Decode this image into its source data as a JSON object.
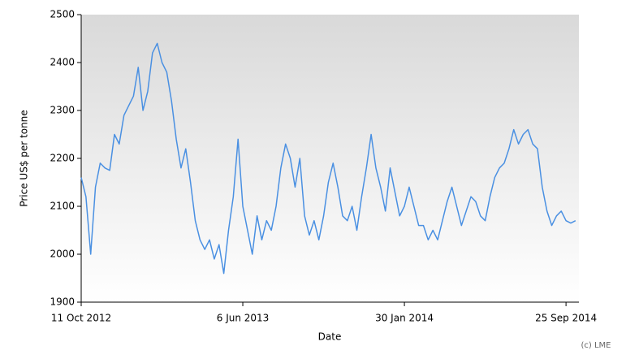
{
  "chart_data": {
    "type": "line",
    "y_label": "Price US$ per tonne",
    "x_label": "Date",
    "credit": "(c) LME",
    "color": "#4a90e2",
    "x": [
      "2012-10-11",
      "2012-10-18",
      "2012-10-25",
      "2012-11-01",
      "2012-11-08",
      "2012-11-15",
      "2012-11-22",
      "2012-11-29",
      "2012-12-06",
      "2012-12-13",
      "2012-12-20",
      "2012-12-27",
      "2013-01-03",
      "2013-01-10",
      "2013-01-17",
      "2013-01-24",
      "2013-01-31",
      "2013-02-07",
      "2013-02-14",
      "2013-02-21",
      "2013-02-28",
      "2013-03-07",
      "2013-03-14",
      "2013-03-21",
      "2013-03-28",
      "2013-04-04",
      "2013-04-11",
      "2013-04-18",
      "2013-04-25",
      "2013-05-02",
      "2013-05-09",
      "2013-05-16",
      "2013-05-23",
      "2013-05-30",
      "2013-06-06",
      "2013-06-13",
      "2013-06-20",
      "2013-06-27",
      "2013-07-04",
      "2013-07-11",
      "2013-07-18",
      "2013-07-25",
      "2013-08-01",
      "2013-08-08",
      "2013-08-15",
      "2013-08-22",
      "2013-08-29",
      "2013-09-05",
      "2013-09-12",
      "2013-09-19",
      "2013-09-26",
      "2013-10-03",
      "2013-10-10",
      "2013-10-17",
      "2013-10-24",
      "2013-10-31",
      "2013-11-07",
      "2013-11-14",
      "2013-11-21",
      "2013-11-28",
      "2013-12-05",
      "2013-12-12",
      "2013-12-19",
      "2013-12-26",
      "2014-01-02",
      "2014-01-09",
      "2014-01-16",
      "2014-01-23",
      "2014-01-30",
      "2014-02-06",
      "2014-02-13",
      "2014-02-20",
      "2014-02-27",
      "2014-03-06",
      "2014-03-13",
      "2014-03-20",
      "2014-03-27",
      "2014-04-03",
      "2014-04-10",
      "2014-04-17",
      "2014-04-24",
      "2014-05-01",
      "2014-05-08",
      "2014-05-15",
      "2014-05-22",
      "2014-05-29",
      "2014-06-05",
      "2014-06-12",
      "2014-06-19",
      "2014-06-26",
      "2014-07-03",
      "2014-07-10",
      "2014-07-17",
      "2014-07-24",
      "2014-07-31",
      "2014-08-07",
      "2014-08-14",
      "2014-08-21",
      "2014-08-28",
      "2014-09-04",
      "2014-09-11",
      "2014-09-18",
      "2014-09-25",
      "2014-10-02",
      "2014-10-09"
    ],
    "values": [
      2160,
      2120,
      2000,
      2140,
      2190,
      2180,
      2175,
      2250,
      2230,
      2290,
      2310,
      2330,
      2390,
      2300,
      2340,
      2420,
      2440,
      2400,
      2380,
      2320,
      2240,
      2180,
      2220,
      2150,
      2070,
      2030,
      2010,
      2030,
      1990,
      2020,
      1960,
      2050,
      2120,
      2240,
      2100,
      2050,
      2000,
      2080,
      2030,
      2070,
      2050,
      2100,
      2180,
      2230,
      2200,
      2140,
      2200,
      2080,
      2040,
      2070,
      2030,
      2080,
      2150,
      2190,
      2140,
      2080,
      2070,
      2100,
      2050,
      2120,
      2180,
      2250,
      2180,
      2140,
      2090,
      2180,
      2130,
      2080,
      2100,
      2140,
      2100,
      2060,
      2060,
      2030,
      2050,
      2030,
      2070,
      2110,
      2140,
      2100,
      2060,
      2090,
      2120,
      2110,
      2080,
      2070,
      2120,
      2160,
      2180,
      2190,
      2220,
      2260,
      2230,
      2250,
      2260,
      2230,
      2220,
      2140,
      2090,
      2060,
      2080,
      2090,
      2070,
      2065,
      2070
    ],
    "xlim": [
      "2012-10-11",
      "2014-10-14"
    ],
    "xticks": [
      {
        "value": "2012-10-11",
        "label": "11 Oct 2012"
      },
      {
        "value": "2013-06-06",
        "label": "6 Jun 2013"
      },
      {
        "value": "2014-01-30",
        "label": "30 Jan 2014"
      },
      {
        "value": "2014-09-25",
        "label": "25 Sep 2014"
      }
    ],
    "ylim": [
      1900,
      2500
    ],
    "yticks": [
      1900,
      2000,
      2100,
      2200,
      2300,
      2400,
      2500
    ]
  }
}
